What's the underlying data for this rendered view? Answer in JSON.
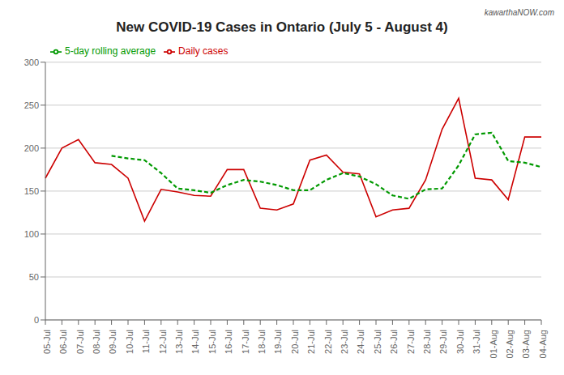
{
  "chart_data": {
    "type": "line",
    "title": "New COVID-19 Cases in Ontario (July 5 - August 4)",
    "annotations": [
      "kawarthaNOW.com"
    ],
    "categories": [
      "05-Jul",
      "06-Jul",
      "07-Jul",
      "08-Jul",
      "09-Jul",
      "10-Jul",
      "11-Jul",
      "12-Jul",
      "13-Jul",
      "14-Jul",
      "15-Jul",
      "16-Jul",
      "17-Jul",
      "18-Jul",
      "19-Jul",
      "20-Jul",
      "21-Jul",
      "22-Jul",
      "23-Jul",
      "24-Jul",
      "25-Jul",
      "26-Jul",
      "27-Jul",
      "28-Jul",
      "29-Jul",
      "30-Jul",
      "31-Jul",
      "01-Aug",
      "02-Aug",
      "03-Aug",
      "04-Aug"
    ],
    "series": [
      {
        "name": "Daily cases",
        "color": "#cc0000",
        "line_style": "solid",
        "values": [
          165,
          200,
          210,
          183,
          181,
          165,
          115,
          152,
          149,
          145,
          144,
          175,
          175,
          130,
          128,
          135,
          186,
          192,
          172,
          170,
          120,
          128,
          130,
          163,
          222,
          258,
          165,
          163,
          140,
          213,
          213
        ]
      },
      {
        "name": "5-day rolling average",
        "color": "#009900",
        "line_style": "dashed",
        "values": [
          null,
          null,
          null,
          null,
          191,
          188,
          186,
          171,
          153,
          151,
          148,
          157,
          163,
          161,
          157,
          151,
          151,
          163,
          171,
          167,
          158,
          145,
          141,
          152,
          153,
          180,
          216,
          218,
          185,
          183,
          178
        ]
      }
    ],
    "ylim": [
      0,
      300
    ],
    "yticks": [
      0,
      50,
      100,
      150,
      200,
      250,
      300
    ],
    "grid": true,
    "legend": "upper left"
  }
}
